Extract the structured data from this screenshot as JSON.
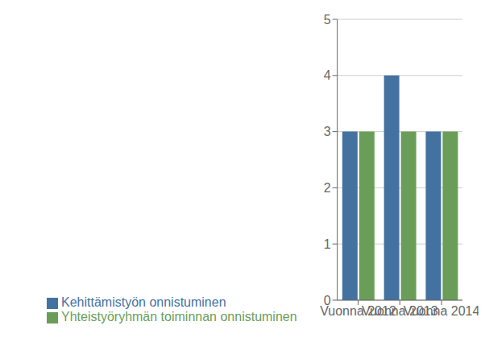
{
  "chart_data": {
    "type": "bar",
    "categories": [
      "Vuonna 2012",
      "Vuonna 2013",
      "Vuonna 2014"
    ],
    "series": [
      {
        "name": "Kehittämistyön onnistuminen",
        "color": "#4472a0",
        "values": [
          3,
          4,
          3
        ]
      },
      {
        "name": "Yhteistyöryhmän toiminnan onnistuminen",
        "color": "#6a9e58",
        "values": [
          3,
          3,
          3
        ]
      }
    ],
    "ylim": [
      0,
      5
    ],
    "yticks": [
      0,
      1,
      2,
      3,
      4,
      5
    ],
    "grid": true,
    "legend": "bottom"
  }
}
